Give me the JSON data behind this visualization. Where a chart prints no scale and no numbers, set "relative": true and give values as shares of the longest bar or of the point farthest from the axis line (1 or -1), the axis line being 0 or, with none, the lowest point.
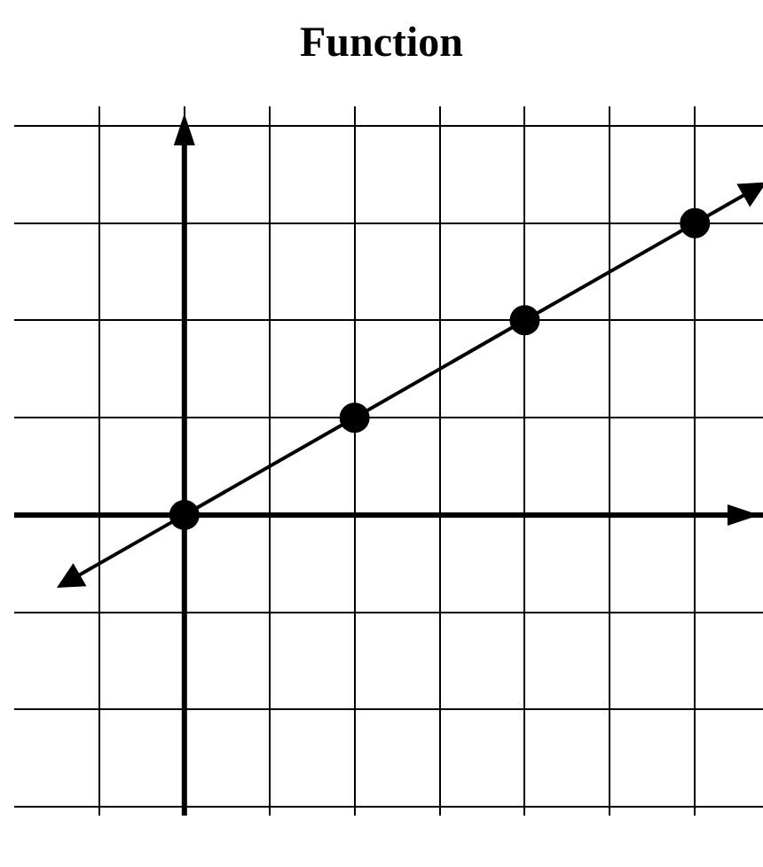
{
  "chart_data": {
    "type": "line",
    "title": "Function",
    "relative": true,
    "categories": [
      null,
      null,
      null,
      null
    ],
    "series": [
      {
        "color": "#000000",
        "values": [
          0,
          0.333,
          0.667,
          1
        ]
      }
    ],
    "marker": "circle",
    "line_style": "solid",
    "grid": true
  }
}
